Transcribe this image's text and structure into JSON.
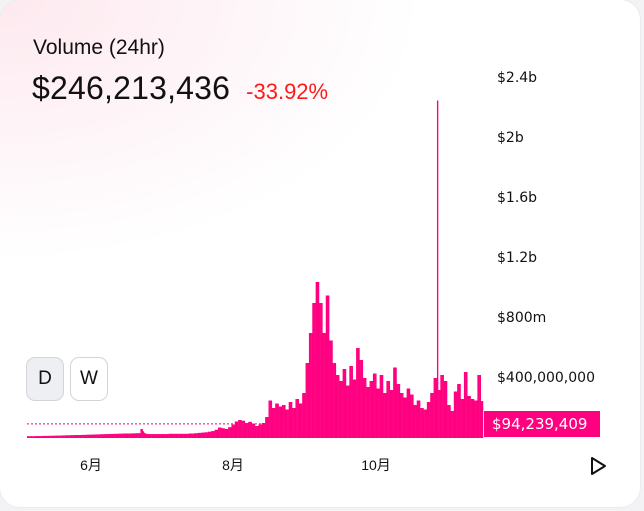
{
  "header": {
    "title": "Volume (24hr)",
    "value": "$246,213,436",
    "change": "-33.92%"
  },
  "colors": {
    "accent": "#ff0080",
    "negative": "#ff1a1a"
  },
  "controls": {
    "daily_label": "D",
    "weekly_label": "W",
    "selected": "D",
    "play_icon": "play-icon"
  },
  "chart_data": {
    "type": "bar",
    "x_axis": {
      "tick_labels": [
        "6月",
        "8月",
        "10月"
      ]
    },
    "y_axis": {
      "position": "right",
      "range": [
        0,
        2400000000
      ],
      "ticks": [
        {
          "value": 2400000000,
          "label": "$2.4b"
        },
        {
          "value": 2000000000,
          "label": "$2b"
        },
        {
          "value": 1600000000,
          "label": "$1.6b"
        },
        {
          "value": 1200000000,
          "label": "$1.2b"
        },
        {
          "value": 800000000,
          "label": "$800m"
        },
        {
          "value": 400000000,
          "label": "$400,000,000"
        }
      ]
    },
    "current_value": {
      "value": 94239409,
      "label": "$94,239,409"
    },
    "grid": false,
    "legend": "none",
    "series": [
      {
        "color": "#ff0080",
        "values": [
          12000000,
          12000000,
          12000000,
          12000000,
          12000000,
          12000000,
          12000000,
          13000000,
          13000000,
          13000000,
          13000000,
          13000000,
          13000000,
          13000000,
          14000000,
          14000000,
          14000000,
          14000000,
          14000000,
          14000000,
          15000000,
          15000000,
          15000000,
          15000000,
          15000000,
          16000000,
          16000000,
          16000000,
          16000000,
          16000000,
          17000000,
          17000000,
          17000000,
          17000000,
          18000000,
          18000000,
          18000000,
          18000000,
          19000000,
          19000000,
          19000000,
          19000000,
          20000000,
          20000000,
          20000000,
          20000000,
          20000000,
          20000000,
          20000000,
          21000000,
          21000000,
          21000000,
          21000000,
          22000000,
          22000000,
          22000000,
          22000000,
          23000000,
          23000000,
          23000000,
          23000000,
          24000000,
          24000000,
          24000000,
          24000000,
          25000000,
          25000000,
          25000000,
          25000000,
          26000000,
          26000000,
          26000000,
          26000000,
          27000000,
          27000000,
          27000000,
          27000000,
          28000000,
          28000000,
          28000000,
          28000000,
          29000000,
          29000000,
          29000000,
          29000000,
          30000000,
          30000000,
          30000000,
          30000000,
          30000000,
          30000000,
          30000000,
          30000000,
          31000000,
          31000000,
          31000000,
          31000000,
          32000000,
          32000000,
          32000000,
          32000000,
          60000000,
          60000000,
          45000000,
          35000000,
          30000000,
          28000000,
          27000000,
          26000000,
          26000000,
          26000000,
          26000000,
          26000000,
          26000000,
          26000000,
          26000000,
          26000000,
          26000000,
          26000000,
          26000000,
          26000000,
          26000000,
          26000000,
          26000000,
          26000000,
          26000000,
          28000000,
          28000000,
          28000000,
          28000000,
          28000000,
          28000000,
          28000000,
          28000000,
          28000000,
          28000000,
          28000000,
          28000000,
          28000000,
          28000000,
          28000000,
          28000000,
          28000000,
          28000000,
          30000000,
          30000000,
          30000000,
          30000000,
          30000000,
          32000000,
          32000000,
          32000000,
          34000000,
          34000000,
          34000000,
          36000000,
          36000000,
          36000000,
          38000000,
          38000000,
          38000000,
          42000000,
          42000000,
          42000000,
          46000000,
          46000000,
          46000000,
          55000000,
          55000000,
          55000000,
          70000000,
          70000000,
          70000000,
          65000000,
          65000000,
          65000000,
          60000000,
          60000000,
          60000000,
          72000000,
          72000000,
          72000000,
          90000000,
          90000000,
          90000000,
          110000000,
          110000000,
          110000000,
          120000000,
          120000000,
          120000000,
          115000000,
          115000000,
          115000000,
          100000000,
          100000000,
          100000000,
          108000000,
          108000000,
          108000000,
          96000000,
          96000000,
          96000000,
          80000000,
          80000000,
          80000000,
          90000000,
          90000000,
          90000000,
          100000000,
          100000000,
          100000000,
          140000000,
          140000000,
          140000000,
          250000000,
          250000000,
          250000000,
          200000000,
          200000000,
          200000000,
          230000000,
          230000000,
          230000000,
          210000000,
          210000000,
          210000000,
          220000000,
          220000000,
          220000000,
          190000000,
          190000000,
          190000000,
          240000000,
          240000000,
          240000000,
          200000000,
          200000000,
          200000000,
          260000000,
          260000000,
          260000000,
          230000000,
          230000000,
          230000000,
          300000000,
          300000000,
          300000000,
          500000000,
          500000000,
          500000000,
          700000000,
          700000000,
          700000000,
          900000000,
          900000000,
          900000000,
          1040000000,
          1040000000,
          1040000000,
          900000000,
          900000000,
          900000000,
          700000000,
          700000000,
          700000000,
          950000000,
          950000000,
          950000000,
          650000000,
          650000000,
          650000000,
          500000000,
          500000000,
          500000000,
          420000000,
          420000000,
          420000000,
          380000000,
          380000000,
          380000000,
          460000000,
          460000000,
          460000000,
          350000000,
          350000000,
          350000000,
          480000000,
          480000000,
          480000000,
          390000000,
          390000000,
          390000000,
          600000000,
          600000000,
          600000000,
          520000000,
          520000000,
          520000000,
          400000000,
          400000000,
          400000000,
          340000000,
          340000000,
          340000000,
          380000000,
          380000000,
          380000000,
          430000000,
          430000000,
          430000000,
          330000000,
          330000000,
          330000000,
          420000000,
          420000000,
          420000000,
          300000000,
          300000000,
          300000000,
          380000000,
          380000000,
          380000000,
          320000000,
          320000000,
          320000000,
          470000000,
          470000000,
          470000000,
          360000000,
          360000000,
          360000000,
          300000000,
          300000000,
          300000000,
          270000000,
          270000000,
          270000000,
          330000000,
          330000000,
          330000000,
          290000000,
          290000000,
          290000000,
          220000000,
          220000000,
          220000000,
          250000000,
          250000000,
          250000000,
          200000000,
          200000000,
          200000000,
          190000000,
          190000000,
          190000000,
          240000000,
          240000000,
          240000000,
          300000000,
          300000000,
          300000000,
          400000000,
          400000000,
          400000000,
          2250000000,
          320000000,
          320000000,
          420000000,
          420000000,
          420000000,
          380000000,
          380000000,
          380000000,
          220000000,
          220000000,
          220000000,
          180000000,
          180000000,
          180000000,
          310000000,
          310000000,
          310000000,
          360000000,
          360000000,
          360000000,
          260000000,
          260000000,
          260000000,
          440000000,
          440000000,
          440000000,
          280000000,
          280000000,
          280000000,
          260000000,
          260000000,
          260000000,
          250000000,
          250000000,
          250000000,
          420000000,
          420000000,
          420000000,
          246000000,
          246000000
        ]
      }
    ]
  }
}
